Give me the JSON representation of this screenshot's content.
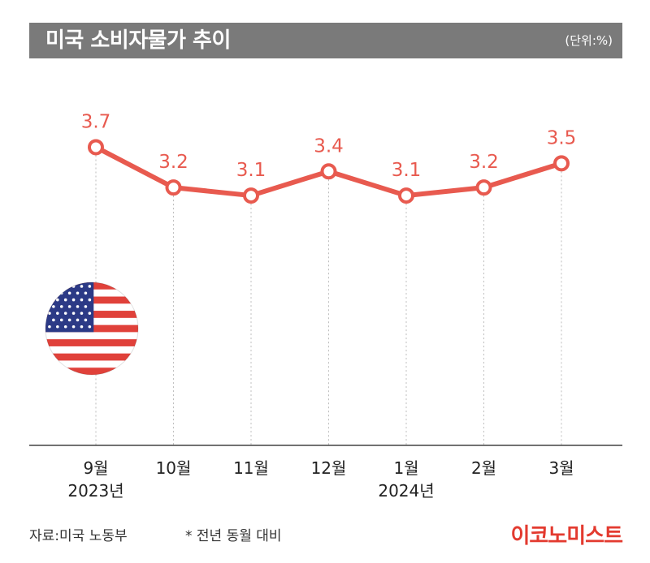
{
  "header": {
    "title": "미국 소비자물가 추이",
    "unit": "(단위:%)"
  },
  "chart_data": {
    "type": "line",
    "categories": [
      "9월",
      "10월",
      "11월",
      "12월",
      "1월",
      "2월",
      "3월"
    ],
    "year_labels": [
      "2023년",
      "",
      "",
      "",
      "2024년",
      "",
      ""
    ],
    "values": [
      3.7,
      3.2,
      3.1,
      3.4,
      3.1,
      3.2,
      3.5
    ],
    "value_labels": [
      "3.7",
      "3.2",
      "3.1",
      "3.4",
      "3.1",
      "3.2",
      "3.5"
    ],
    "title": "미국 소비자물가 추이",
    "xlabel": "",
    "ylabel": "",
    "ylim": [
      0,
      4.5
    ],
    "grid": false,
    "colors": {
      "line": "#e85a4f",
      "label": "#e85a4f",
      "axis": "#444444"
    }
  },
  "footer": {
    "source": "자료:미국 노동부",
    "note": "* 전년 동월 대비",
    "brand": "이코노미스트"
  },
  "icons": {
    "flag": "us-flag-icon"
  }
}
